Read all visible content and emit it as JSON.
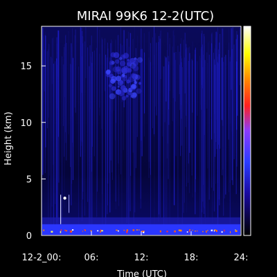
{
  "chart_data": {
    "type": "heatmap",
    "title": "MIRAI 99K6 12-2(UTC)",
    "xlabel": "Time (UTC)",
    "ylabel": "Height (km)",
    "xlim": [
      0,
      24
    ],
    "ylim": [
      0,
      18.5
    ],
    "x_ticks": [
      {
        "value": 0,
        "label": "12-2_00:"
      },
      {
        "value": 6,
        "label": "06:"
      },
      {
        "value": 12,
        "label": "12:"
      },
      {
        "value": 18,
        "label": "18:"
      },
      {
        "value": 24,
        "label": "24:"
      }
    ],
    "y_ticks": [
      {
        "value": 0,
        "label": "0"
      },
      {
        "value": 5,
        "label": "5"
      },
      {
        "value": 10,
        "label": "10"
      },
      {
        "value": 15,
        "label": "15"
      }
    ],
    "features": {
      "surface_layer_height_km": [
        0,
        1
      ],
      "cloud_patch": {
        "time_range": [
          8,
          12
        ],
        "height_range_km": [
          12,
          16
        ]
      },
      "low_column": {
        "time_range": [
          2.3,
          3.3
        ],
        "height_range_km": [
          1,
          3.6
        ]
      }
    },
    "colorbar_colors": [
      "#000000",
      "#1a0aa0",
      "#2a3cff",
      "#8a3cff",
      "#ff2020",
      "#ff8c00",
      "#ffff00",
      "#ffffff"
    ]
  }
}
